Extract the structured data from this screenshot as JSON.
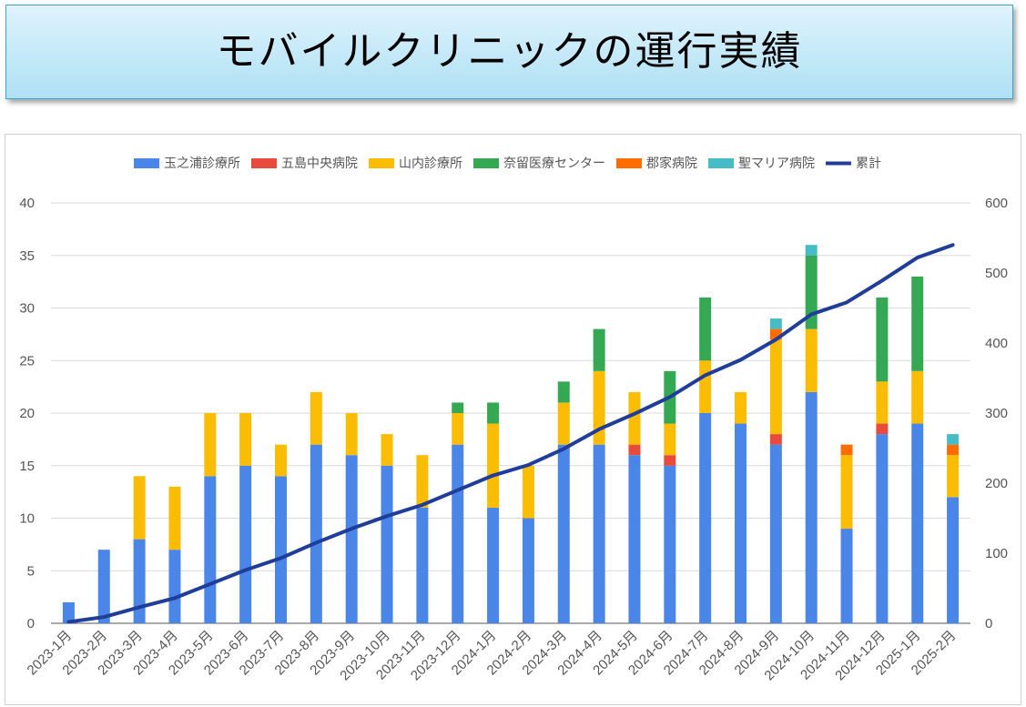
{
  "title": "モバイルクリニックの運行実績",
  "chart_data": {
    "type": "bar",
    "stacked": true,
    "title": "",
    "xlabel": "",
    "ylabel": "",
    "ylabel_right": "",
    "categories": [
      "2023-1月",
      "2023-2月",
      "2023-3月",
      "2023-4月",
      "2023-5月",
      "2023-6月",
      "2023-7月",
      "2023-8月",
      "2023-9月",
      "2023-10月",
      "2023-11月",
      "2023-12月",
      "2024-1月",
      "2024-2月",
      "2024-3月",
      "2024-4月",
      "2024-5月",
      "2024-6月",
      "2024-7月",
      "2024-8月",
      "2024-9月",
      "2024-10月",
      "2024-11月",
      "2024-12月",
      "2025-1月",
      "2025-2月"
    ],
    "series": [
      {
        "name": "玉之浦診療所",
        "color": "#4a86e8",
        "values": [
          2,
          7,
          8,
          7,
          14,
          15,
          14,
          17,
          16,
          15,
          11,
          17,
          11,
          10,
          17,
          17,
          16,
          15,
          20,
          19,
          17,
          22,
          9,
          18,
          19,
          12
        ]
      },
      {
        "name": "五島中央病院",
        "color": "#e84a3c",
        "values": [
          0,
          0,
          0,
          0,
          0,
          0,
          0,
          0,
          0,
          0,
          0,
          0,
          0,
          0,
          0,
          0,
          1,
          1,
          0,
          0,
          1,
          0,
          0,
          1,
          0,
          0
        ]
      },
      {
        "name": "山内診療所",
        "color": "#fbbc04",
        "values": [
          0,
          0,
          6,
          6,
          6,
          5,
          3,
          5,
          4,
          3,
          5,
          3,
          8,
          5,
          4,
          7,
          5,
          3,
          5,
          3,
          9,
          6,
          7,
          4,
          5,
          4
        ]
      },
      {
        "name": "奈留医療センター",
        "color": "#34a853",
        "values": [
          0,
          0,
          0,
          0,
          0,
          0,
          0,
          0,
          0,
          0,
          0,
          1,
          2,
          0,
          2,
          4,
          0,
          5,
          6,
          0,
          0,
          7,
          0,
          8,
          9,
          0
        ]
      },
      {
        "name": "郡家病院",
        "color": "#ff6d01",
        "values": [
          0,
          0,
          0,
          0,
          0,
          0,
          0,
          0,
          0,
          0,
          0,
          0,
          0,
          0,
          0,
          0,
          0,
          0,
          0,
          0,
          1,
          0,
          1,
          0,
          0,
          1
        ]
      },
      {
        "name": "聖マリア病院",
        "color": "#46bdc6",
        "values": [
          0,
          0,
          0,
          0,
          0,
          0,
          0,
          0,
          0,
          0,
          0,
          0,
          0,
          0,
          0,
          0,
          0,
          0,
          0,
          0,
          1,
          1,
          0,
          0,
          0,
          1
        ]
      }
    ],
    "line": {
      "name": "累計",
      "color": "#1f3d99",
      "axis": "right",
      "values": [
        2,
        9,
        23,
        36,
        56,
        76,
        93,
        115,
        135,
        153,
        169,
        190,
        211,
        226,
        249,
        277,
        299,
        323,
        354,
        376,
        405,
        441,
        458,
        489,
        522,
        540
      ]
    },
    "ylim": [
      0,
      40
    ],
    "yticks": [
      0,
      5,
      10,
      15,
      20,
      25,
      30,
      35,
      40
    ],
    "ylim_right": [
      0,
      600
    ],
    "yticks_right": [
      0,
      100,
      200,
      300,
      400,
      500,
      600
    ],
    "legend_position": "top",
    "grid": true
  }
}
